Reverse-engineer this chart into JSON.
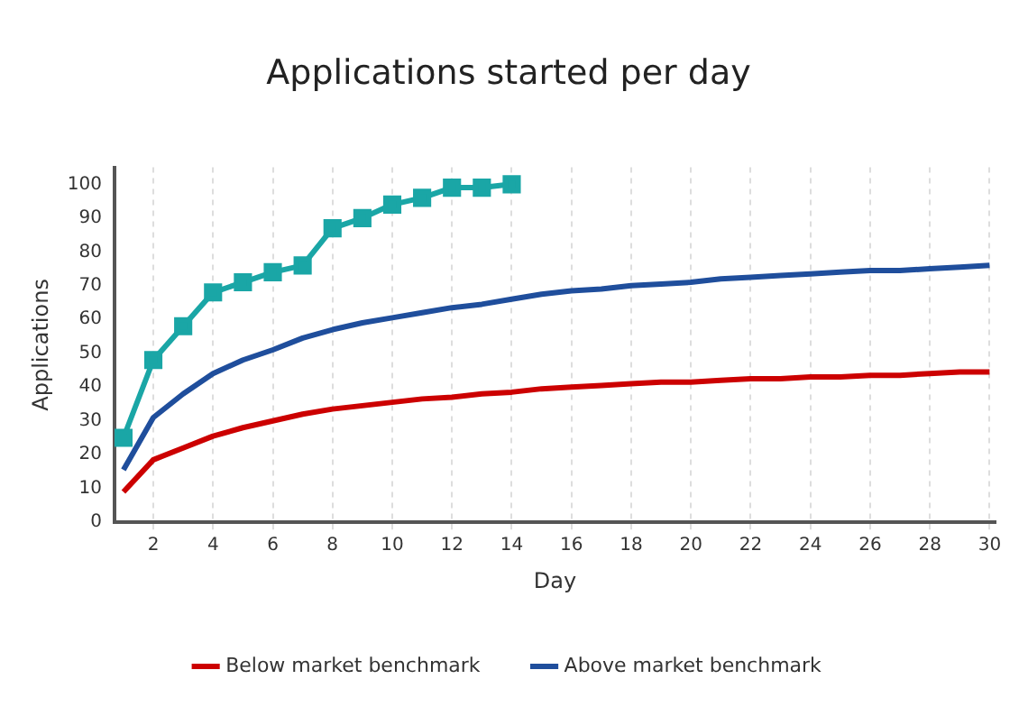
{
  "chart_data": {
    "type": "line",
    "title": "Applications started per day",
    "xlabel": "Day",
    "ylabel": "Applications",
    "x": [
      1,
      2,
      3,
      4,
      5,
      6,
      7,
      8,
      9,
      10,
      11,
      12,
      13,
      14,
      15,
      16,
      17,
      18,
      19,
      20,
      21,
      22,
      23,
      24,
      25,
      26,
      27,
      28,
      29,
      30
    ],
    "series": [
      {
        "name": "Below market benchmark",
        "color": "#cc0000",
        "marker": "none",
        "values": [
          9,
          18.5,
          22,
          25.5,
          28,
          30,
          32,
          33.5,
          34.5,
          35.5,
          36.5,
          37,
          38,
          38.5,
          39.5,
          40,
          40.5,
          41,
          41.5,
          41.5,
          42,
          42.5,
          42.5,
          43,
          43,
          43.5,
          43.5,
          44,
          44.5,
          44.5
        ]
      },
      {
        "name": "Above market benchmark",
        "color": "#1f4e9c",
        "marker": "none",
        "values": [
          15.5,
          31,
          38,
          44,
          48,
          51,
          54.5,
          57,
          59,
          60.5,
          62,
          63.5,
          64.5,
          66,
          67.5,
          68.5,
          69,
          70,
          70.5,
          71,
          72,
          72.5,
          73,
          73.5,
          74,
          74.5,
          74.5,
          75,
          75.5,
          76
        ]
      },
      {
        "color": "#1aa6a6",
        "marker": "square",
        "x": [
          1,
          2,
          3,
          4,
          5,
          6,
          7,
          8,
          9,
          10,
          11,
          12,
          13,
          14
        ],
        "values": [
          25,
          48,
          58,
          68,
          71,
          74,
          76,
          87,
          90,
          94,
          96,
          99,
          99,
          100
        ]
      }
    ],
    "xlim": [
      0.7,
      30.2
    ],
    "xticks": [
      2,
      4,
      6,
      8,
      10,
      12,
      14,
      16,
      18,
      20,
      22,
      24,
      26,
      28,
      30
    ],
    "ylim": [
      0,
      105
    ],
    "yticks": [
      0,
      10,
      20,
      30,
      40,
      50,
      60,
      70,
      80,
      90,
      100
    ],
    "grid": "x",
    "legend": "bottom",
    "line_style": "solid"
  }
}
